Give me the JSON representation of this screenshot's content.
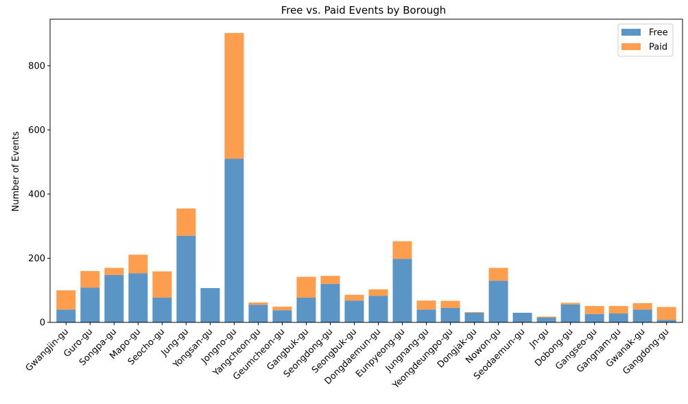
{
  "chart_data": {
    "type": "bar",
    "stacked": true,
    "title": "Free vs. Paid Events by Borough",
    "xlabel": "",
    "ylabel": "Number of Events",
    "ylim": [
      0,
      945
    ],
    "yticks": [
      0,
      200,
      400,
      600,
      800
    ],
    "legend_position": "top-right",
    "categories": [
      "Gwangjin-gu",
      "Guro-gu",
      "Songpa-gu",
      "Mapo-gu",
      "Seocho-gu",
      "Jung-gu",
      "Yongsan-gu",
      "Jongno-gu",
      "Yangcheon-gu",
      "Geumcheon-gu",
      "Gangbuk-gu",
      "Seongdong-gu",
      "Seongbuk-gu",
      "Dongdaemun-gu",
      "Eunpyeong-gu",
      "Jungnang-gu",
      "Yeongdeungpo-gu",
      "Dongjak-gu",
      "Nowon-gu",
      "Seodaemun-gu",
      "Jn-gu",
      "Dobong-gu",
      "Gangseo-gu",
      "Gangnam-gu",
      "Gwanak-gu",
      "Gangdong-gu"
    ],
    "series": [
      {
        "name": "Free",
        "color": "#5b95c6",
        "values": [
          40,
          108,
          148,
          153,
          77,
          270,
          107,
          510,
          55,
          38,
          77,
          120,
          68,
          83,
          198,
          40,
          45,
          30,
          130,
          30,
          15,
          56,
          26,
          28,
          40,
          8
        ]
      },
      {
        "name": "Paid",
        "color": "#fd9d4e",
        "values": [
          60,
          52,
          22,
          58,
          82,
          85,
          0,
          392,
          7,
          11,
          65,
          25,
          18,
          20,
          55,
          28,
          22,
          2,
          40,
          0,
          3,
          5,
          25,
          23,
          20,
          40
        ]
      }
    ]
  }
}
